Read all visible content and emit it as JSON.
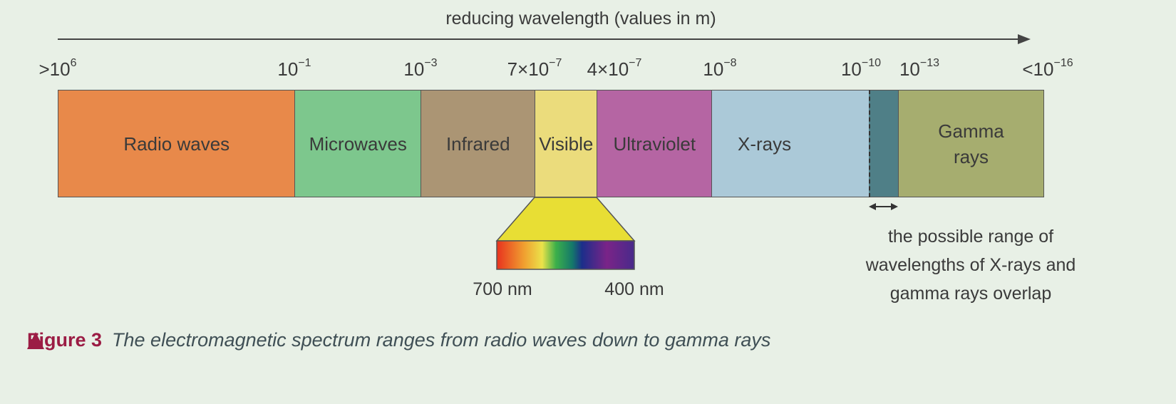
{
  "title": "reducing wavelength (values in m)",
  "ticks": [
    {
      "prefix": ">10",
      "exp": "6"
    },
    {
      "prefix": "10",
      "exp": "−1"
    },
    {
      "prefix": "10",
      "exp": "−3"
    },
    {
      "prefix": "7×10",
      "exp": "−7"
    },
    {
      "prefix": "4×10",
      "exp": "−7"
    },
    {
      "prefix": "10",
      "exp": "−8"
    },
    {
      "prefix": "10",
      "exp": "−10"
    },
    {
      "prefix": "10",
      "exp": "−13"
    },
    {
      "prefix": "<10",
      "exp": "−16"
    }
  ],
  "bands": [
    {
      "label": "Radio waves",
      "color": "#e8894a"
    },
    {
      "label": "Microwaves",
      "color": "#7dc78d"
    },
    {
      "label": "Infrared",
      "color": "#ab9574"
    },
    {
      "label": "Visible",
      "color": "#ebdc7c"
    },
    {
      "label": "Ultraviolet",
      "color": "#b565a3"
    },
    {
      "label": "X-rays",
      "color": "#abc9d8"
    },
    {
      "label": "",
      "color": "#4f7f87"
    },
    {
      "label": "Gamma rays",
      "color": "#a6ad6f"
    }
  ],
  "visible_spectrum": {
    "left_label": "700 nm",
    "right_label": "400 nm"
  },
  "overlap_note": [
    "the possible range of",
    "wavelengths of X-rays and",
    "gamma rays overlap"
  ],
  "caption": {
    "figure": "Figure 3",
    "text": "The electromagnetic spectrum ranges from radio waves down to gamma rays",
    "accent": "#9b1c44"
  }
}
